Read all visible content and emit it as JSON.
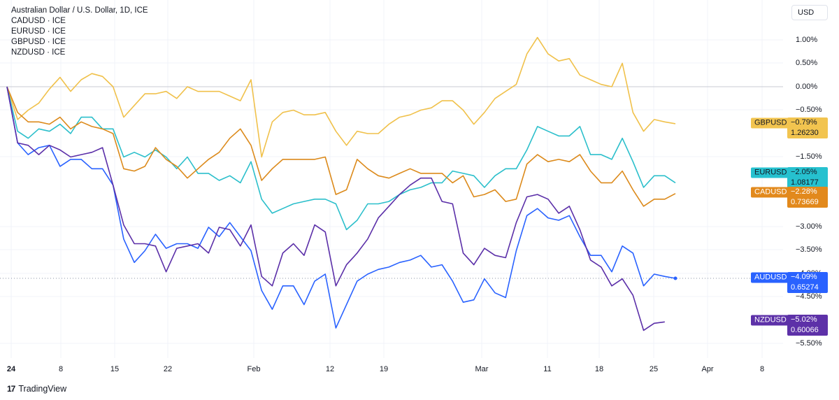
{
  "legend": {
    "title": "Australian Dollar / U.S. Dollar, 1D, ICE",
    "items": [
      "CADUSD · ICE",
      "EURUSD · ICE",
      "GBPUSD · ICE",
      "NZDUSD · ICE"
    ]
  },
  "unit": "USD",
  "branding": "TradingView",
  "chart_data": {
    "type": "line",
    "ylim": [
      -5.5,
      1.0
    ],
    "ytick_labels": [
      "1.00%",
      "0.50%",
      "0.00%",
      "−0.50%",
      "−1.50%",
      "−3.00%",
      "−3.50%",
      "−4.00%",
      "−4.50%",
      "−5.50%"
    ],
    "xtick_labels": [
      {
        "label": "24",
        "bold": true
      },
      {
        "label": "8",
        "bold": false
      },
      {
        "label": "15",
        "bold": false
      },
      {
        "label": "22",
        "bold": false
      },
      {
        "label": "Feb",
        "bold": false
      },
      {
        "label": "12",
        "bold": false
      },
      {
        "label": "19",
        "bold": false
      },
      {
        "label": "Mar",
        "bold": false
      },
      {
        "label": "11",
        "bold": false
      },
      {
        "label": "18",
        "bold": false
      },
      {
        "label": "25",
        "bold": false
      },
      {
        "label": "Apr",
        "bold": false
      },
      {
        "label": "8",
        "bold": false
      }
    ],
    "series": [
      {
        "name": "GBPUSD",
        "color": "#f0c14b",
        "tag_bg": "#f2c44f",
        "tag_fg": "#131722",
        "last_pct": "−0.79%",
        "last_price": "1.26230",
        "values": [
          0.0,
          -0.7,
          -0.5,
          -0.35,
          -0.05,
          0.2,
          -0.1,
          0.15,
          0.28,
          0.22,
          0.0,
          -0.65,
          -0.4,
          -0.15,
          -0.15,
          -0.1,
          -0.25,
          0.0,
          -0.1,
          -0.1,
          -0.1,
          -0.2,
          -0.3,
          0.15,
          -1.5,
          -0.75,
          -0.55,
          -0.5,
          -0.6,
          -0.6,
          -0.55,
          -0.95,
          -1.25,
          -0.95,
          -1.0,
          -1.0,
          -0.8,
          -0.65,
          -0.6,
          -0.5,
          -0.45,
          -0.3,
          -0.3,
          -0.5,
          -0.8,
          -0.55,
          -0.25,
          -0.1,
          0.05,
          0.7,
          1.05,
          0.7,
          0.55,
          0.6,
          0.25,
          0.15,
          0.05,
          0.0,
          0.5,
          -0.55,
          -0.95,
          -0.7,
          -0.75,
          -0.79
        ]
      },
      {
        "name": "EURUSD",
        "color": "#2bbfcb",
        "tag_bg": "#26c1cf",
        "tag_fg": "#131722",
        "last_pct": "−2.05%",
        "last_price": "1.08177",
        "values": [
          0.0,
          -0.95,
          -1.1,
          -0.9,
          -0.95,
          -0.8,
          -1.0,
          -0.65,
          -0.65,
          -0.9,
          -0.9,
          -1.5,
          -1.4,
          -1.5,
          -1.35,
          -1.5,
          -1.75,
          -1.5,
          -1.85,
          -1.85,
          -2.0,
          -1.9,
          -2.05,
          -1.6,
          -2.4,
          -2.7,
          -2.6,
          -2.5,
          -2.45,
          -2.4,
          -2.4,
          -2.5,
          -3.05,
          -2.85,
          -2.5,
          -2.5,
          -2.45,
          -2.3,
          -2.2,
          -2.15,
          -2.05,
          -2.05,
          -1.8,
          -1.85,
          -1.9,
          -2.15,
          -1.9,
          -1.75,
          -1.75,
          -1.35,
          -0.85,
          -0.95,
          -1.05,
          -1.05,
          -0.85,
          -1.45,
          -1.45,
          -1.55,
          -1.1,
          -1.6,
          -2.15,
          -1.9,
          -1.9,
          -2.05
        ]
      },
      {
        "name": "CADUSD",
        "color": "#dc8a1b",
        "tag_bg": "#e2891c",
        "tag_fg": "#ffffff",
        "last_pct": "−2.28%",
        "last_price": "0.73669",
        "values": [
          0.0,
          -0.55,
          -0.75,
          -0.75,
          -0.8,
          -0.65,
          -0.9,
          -0.75,
          -0.85,
          -0.9,
          -1.0,
          -1.75,
          -1.8,
          -1.7,
          -1.3,
          -1.55,
          -1.7,
          -1.95,
          -1.75,
          -1.55,
          -1.4,
          -1.1,
          -0.9,
          -1.25,
          -2.0,
          -1.75,
          -1.55,
          -1.55,
          -1.55,
          -1.55,
          -1.5,
          -2.3,
          -2.2,
          -1.55,
          -1.75,
          -1.9,
          -1.95,
          -1.85,
          -1.75,
          -1.85,
          -1.85,
          -1.85,
          -2.05,
          -1.9,
          -2.35,
          -2.3,
          -2.2,
          -2.45,
          -2.4,
          -1.65,
          -1.45,
          -1.6,
          -1.55,
          -1.6,
          -1.45,
          -1.8,
          -2.05,
          -2.05,
          -1.8,
          -2.2,
          -2.55,
          -2.4,
          -2.4,
          -2.28
        ]
      },
      {
        "name": "AUDUSD",
        "color": "#2962ff",
        "tag_bg": "#2962ff",
        "tag_fg": "#ffffff",
        "last_pct": "−4.09%",
        "last_price": "0.65274",
        "values": [
          0.0,
          -1.2,
          -1.45,
          -1.3,
          -1.25,
          -1.7,
          -1.55,
          -1.55,
          -1.75,
          -1.75,
          -2.1,
          -3.25,
          -3.75,
          -3.5,
          -3.15,
          -3.45,
          -3.35,
          -3.35,
          -3.45,
          -3.0,
          -3.2,
          -2.9,
          -3.2,
          -3.5,
          -4.35,
          -4.75,
          -4.25,
          -4.25,
          -4.65,
          -4.15,
          -4.0,
          -5.15,
          -4.65,
          -4.15,
          -4.0,
          -3.9,
          -3.85,
          -3.75,
          -3.7,
          -3.6,
          -3.85,
          -3.8,
          -4.15,
          -4.6,
          -4.55,
          -4.1,
          -4.4,
          -4.5,
          -3.5,
          -2.75,
          -2.6,
          -2.8,
          -2.85,
          -2.75,
          -3.2,
          -3.6,
          -3.6,
          -3.95,
          -3.4,
          -3.55,
          -4.25,
          -4.0,
          -4.05,
          -4.09
        ]
      },
      {
        "name": "NZDUSD",
        "color": "#5b2fa8",
        "tag_bg": "#5d31a8",
        "tag_fg": "#ffffff",
        "last_pct": "−5.02%",
        "last_price": "0.60066",
        "values": [
          0.0,
          -1.2,
          -1.25,
          -1.45,
          -1.25,
          -1.35,
          -1.5,
          -1.45,
          -1.4,
          -1.3,
          -2.1,
          -2.95,
          -3.35,
          -3.35,
          -3.4,
          -3.95,
          -3.45,
          -3.4,
          -3.35,
          -3.55,
          -3.0,
          -3.05,
          -3.4,
          -2.95,
          -4.05,
          -4.25,
          -3.55,
          -3.35,
          -3.6,
          -2.95,
          -3.1,
          -4.25,
          -3.8,
          -3.55,
          -3.25,
          -2.8,
          -2.55,
          -2.3,
          -2.1,
          -1.95,
          -1.95,
          -2.45,
          -2.5,
          -3.55,
          -3.8,
          -3.45,
          -3.6,
          -3.65,
          -2.9,
          -2.35,
          -2.3,
          -2.4,
          -2.7,
          -2.55,
          -3.05,
          -3.7,
          -3.85,
          -4.25,
          -4.1,
          -4.45,
          -5.2,
          -5.05,
          -5.02
        ]
      }
    ]
  }
}
